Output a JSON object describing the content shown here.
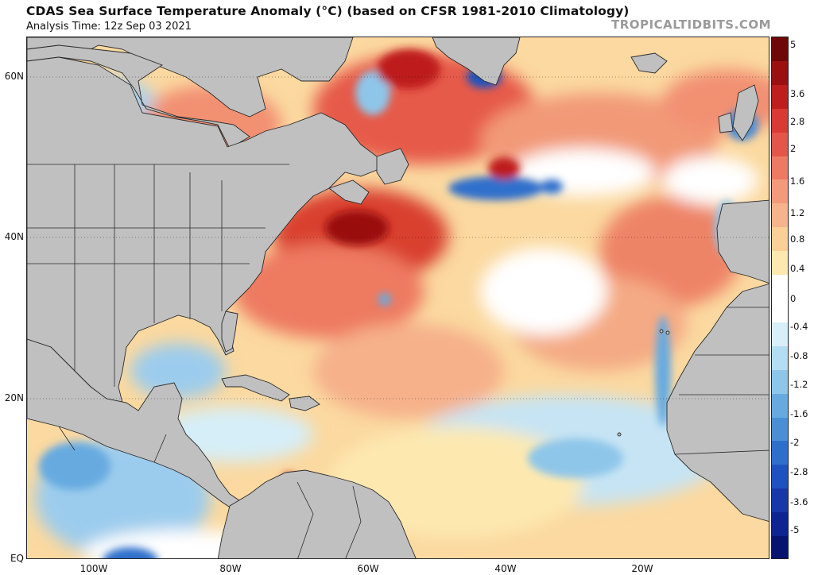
{
  "header": {
    "title": "CDAS Sea Surface Temperature Anomaly (°C) (based on CFSR 1981-2010 Climatology)",
    "analysis_time": "Analysis Time: 12z Sep 03 2021",
    "brand": "TROPICALTIDBITS.COM"
  },
  "map": {
    "lat_labels": [
      "60N",
      "40N",
      "20N",
      "EQ"
    ],
    "lon_labels": [
      "100W",
      "80W",
      "60W",
      "40W",
      "20W"
    ],
    "land_color": "#c0c0c0",
    "border_color": "#2a2a2a"
  },
  "colorbar": {
    "labels": [
      "5",
      "3.6",
      "2.8",
      "2",
      "1.6",
      "1.2",
      "0.8",
      "0.4",
      "0",
      "-0.4",
      "-0.8",
      "-1.2",
      "-1.6",
      "-2",
      "-2.8",
      "-3.6",
      "-5"
    ],
    "colors": [
      "#6e0808",
      "#9a1010",
      "#be1e1e",
      "#d93a34",
      "#e5564a",
      "#ee7a64",
      "#f39a7a",
      "#f7b48c",
      "#fbcf96",
      "#fde9b0",
      "#ffffff",
      "#ffffff",
      "#d8eef8",
      "#b4dcf2",
      "#8ec6ea",
      "#66aae0",
      "#4a8fd6",
      "#2f6fcc",
      "#1f52c0",
      "#1738a8",
      "#0e2490",
      "#061470"
    ]
  }
}
